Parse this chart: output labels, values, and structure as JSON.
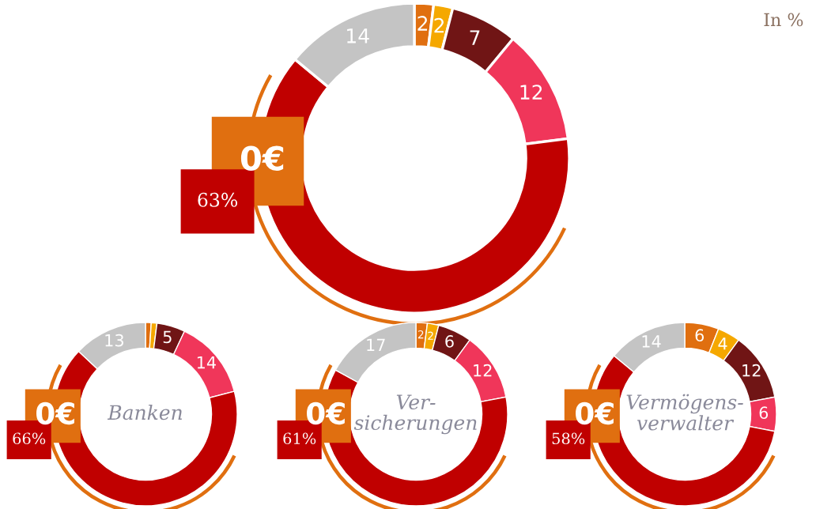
{
  "chart_data": [
    {
      "type": "donut",
      "categories": [
        null,
        null,
        null,
        null,
        null,
        null
      ],
      "values": [
        2,
        2,
        7,
        12,
        63,
        14
      ],
      "colors": [
        "#e06f10",
        "#f5a800",
        "#701515",
        "#f0365a",
        "#c00000",
        "#c4c4c4"
      ],
      "value_labels": [
        "2",
        "2",
        "7",
        "12",
        "63%",
        "14"
      ],
      "annotations": [
        "0€",
        "In %"
      ]
    },
    {
      "type": "donut",
      "title": "Banken",
      "categories": [
        null,
        null,
        null,
        null,
        null,
        null
      ],
      "values": [
        1,
        1,
        5,
        14,
        66,
        13
      ],
      "colors": [
        "#e06f10",
        "#f5a800",
        "#701515",
        "#f0365a",
        "#c00000",
        "#c4c4c4"
      ],
      "value_labels": [
        null,
        null,
        "5",
        "14",
        "66%",
        "13"
      ],
      "annotations": [
        "0€"
      ]
    },
    {
      "type": "donut",
      "title": "Ver-\nsicherungen",
      "categories": [
        null,
        null,
        null,
        null,
        null,
        null
      ],
      "values": [
        2,
        2,
        6,
        12,
        61,
        17
      ],
      "colors": [
        "#e06f10",
        "#f5a800",
        "#701515",
        "#f0365a",
        "#c00000",
        "#c4c4c4"
      ],
      "value_labels": [
        "2",
        "2",
        "6",
        "12",
        "61%",
        "17"
      ],
      "annotations": [
        "0€"
      ]
    },
    {
      "type": "donut",
      "title": "Vermögens-\nverwalter",
      "categories": [
        null,
        null,
        null,
        null,
        null,
        null
      ],
      "values": [
        6,
        4,
        12,
        6,
        58,
        14
      ],
      "colors": [
        "#e06f10",
        "#f5a800",
        "#701515",
        "#f0365a",
        "#c00000",
        "#c4c4c4"
      ],
      "value_labels": [
        "6",
        "4",
        "12",
        "6",
        "58%",
        "14"
      ],
      "annotations": [
        "0€"
      ]
    }
  ]
}
